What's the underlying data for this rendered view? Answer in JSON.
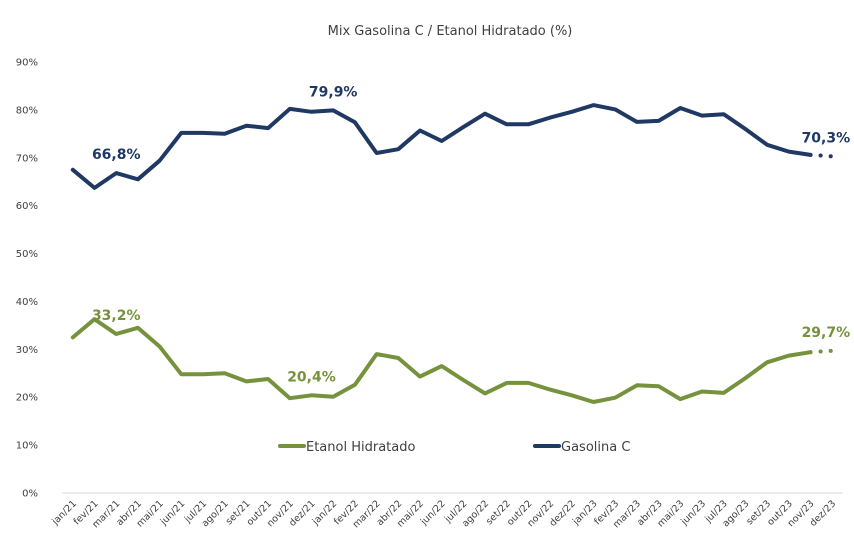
{
  "chart_data": {
    "type": "line",
    "title": "Mix Gasolina C / Etanol Hidratado (%)",
    "xlabel": "",
    "ylabel": "",
    "ylim": [
      0,
      90
    ],
    "y_ticks": [
      "0%",
      "10%",
      "20%",
      "30%",
      "40%",
      "50%",
      "60%",
      "70%",
      "80%",
      "90%"
    ],
    "y_tick_values": [
      0,
      10,
      20,
      30,
      40,
      50,
      60,
      70,
      80,
      90
    ],
    "grid": false,
    "legend_position": "bottom-center",
    "categories": [
      "jan/21",
      "fev/21",
      "mar/21",
      "abr/21",
      "mai/21",
      "jun/21",
      "jul/21",
      "ago/21",
      "set/21",
      "out/21",
      "nov/21",
      "dez/21",
      "jan/22",
      "fev/22",
      "mar/22",
      "abr/22",
      "mai/22",
      "jun/22",
      "jul/22",
      "ago/22",
      "set/22",
      "out/22",
      "nov/22",
      "dez/22",
      "jan/23",
      "fev/23",
      "mar/23",
      "abr/23",
      "mai/23",
      "jun/23",
      "jul/23",
      "ago/23",
      "set/23",
      "out/23",
      "nov/23",
      "dez/23"
    ],
    "series": [
      {
        "name": "Etanol Hidratado",
        "color": "#76923c",
        "values": [
          32.5,
          36.3,
          33.2,
          34.5,
          30.6,
          24.8,
          24.8,
          25.0,
          23.3,
          23.8,
          19.8,
          20.4,
          20.1,
          22.6,
          29.0,
          28.2,
          24.3,
          26.5,
          23.6,
          20.8,
          23.0,
          23.0,
          21.6,
          20.4,
          19.0,
          19.9,
          22.5,
          22.3,
          19.6,
          21.2,
          20.9,
          24.0,
          27.3,
          28.7,
          29.4,
          29.7
        ],
        "projected_from_index": 34,
        "labels": [
          {
            "index": 2,
            "text": "33,2%"
          },
          {
            "index": 11,
            "text": "20,4%"
          },
          {
            "index": 35,
            "text": "29,7%"
          }
        ]
      },
      {
        "name": "Gasolina C",
        "color": "#1f3864",
        "values": [
          67.5,
          63.7,
          66.8,
          65.5,
          69.4,
          75.2,
          75.2,
          75.0,
          76.7,
          76.2,
          80.2,
          79.6,
          79.9,
          77.4,
          71.0,
          71.8,
          75.7,
          73.5,
          76.4,
          79.2,
          77.0,
          77.0,
          78.4,
          79.6,
          81.0,
          80.1,
          77.5,
          77.7,
          80.4,
          78.8,
          79.1,
          76.0,
          72.7,
          71.3,
          70.6,
          70.3
        ],
        "projected_from_index": 34,
        "labels": [
          {
            "index": 2,
            "text": "66,8%"
          },
          {
            "index": 12,
            "text": "79,9%"
          },
          {
            "index": 35,
            "text": "70,3%"
          }
        ]
      }
    ]
  }
}
